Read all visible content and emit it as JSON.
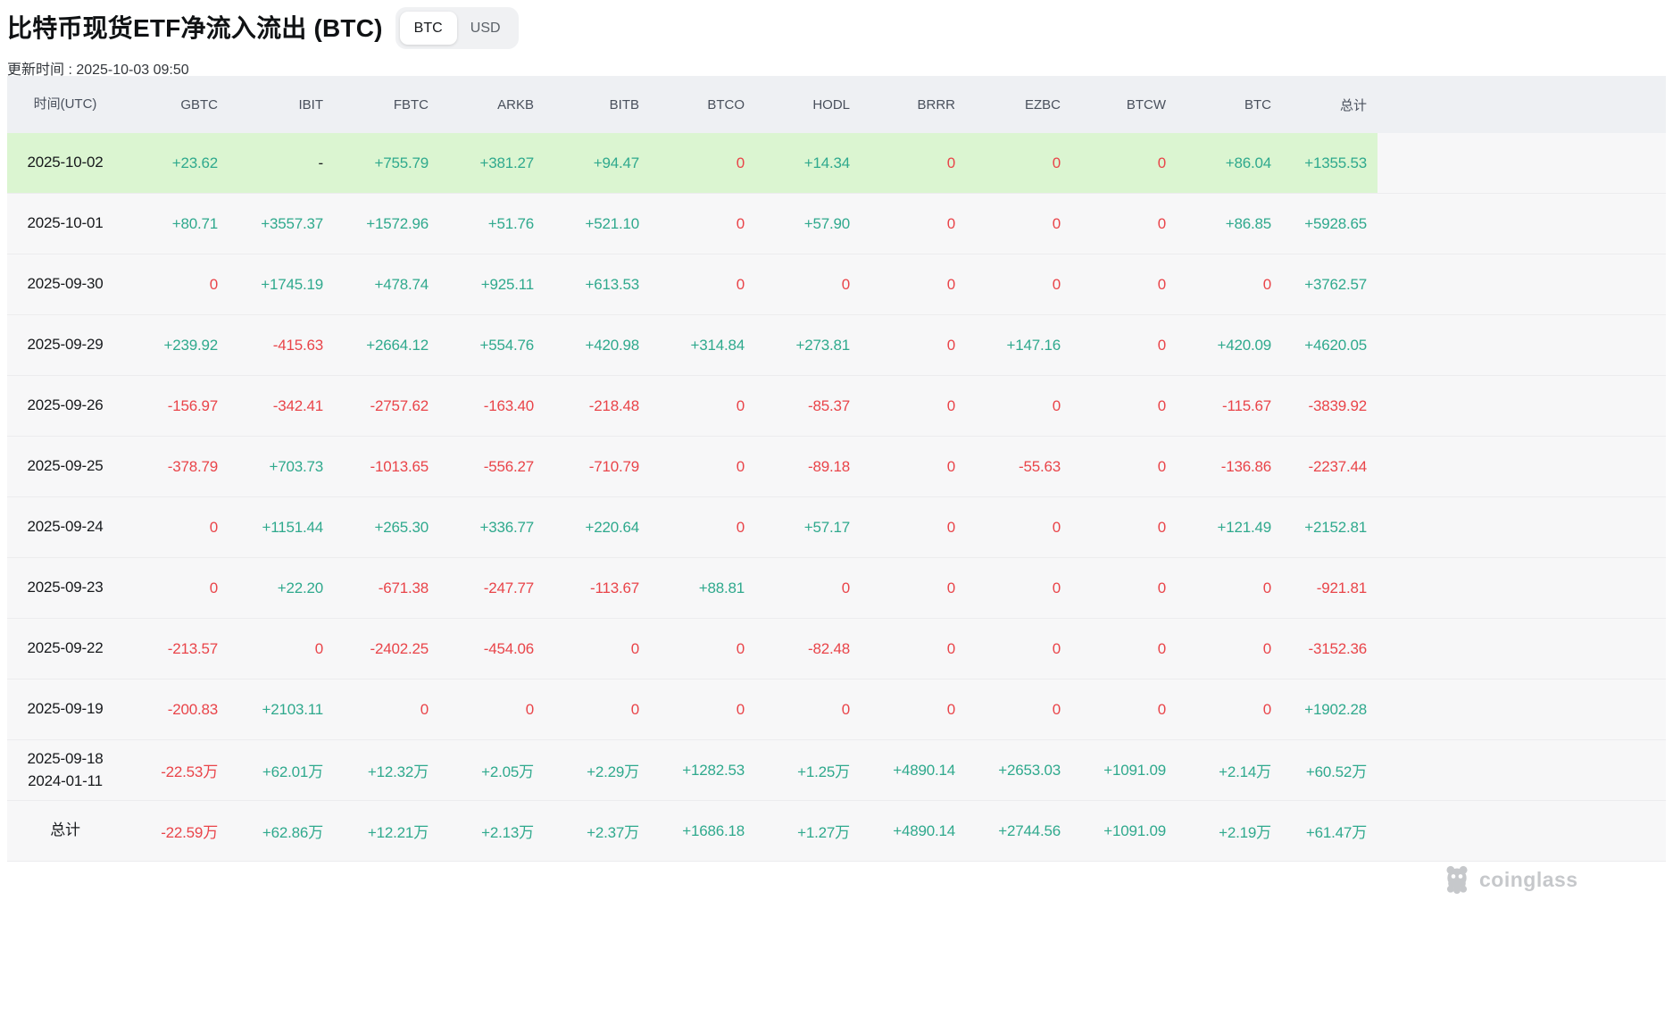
{
  "page": {
    "title": "比特币现货ETF净流入流出 (BTC)",
    "update_time": "更新时间 : 2025-10-03 09:50"
  },
  "toggle": {
    "options": [
      {
        "label": "BTC",
        "selected": true
      },
      {
        "label": "USD",
        "selected": false
      }
    ]
  },
  "watermark": {
    "brand": "coinglass",
    "icon": "coinglass-mascot-icon"
  },
  "colors": {
    "positive": "#2fa98d",
    "negative": "#e94449",
    "highlight_row_bg": "#dbf5d1",
    "header_bg": "#eef0f3",
    "row_bg": "#f7f7f8"
  },
  "table": {
    "columns": [
      "时间(UTC)",
      "GBTC",
      "IBIT",
      "FBTC",
      "ARKB",
      "BITB",
      "BTCO",
      "HODL",
      "BRRR",
      "EZBC",
      "BTCW",
      "BTC",
      "总计"
    ],
    "rows": [
      {
        "date": "2025-10-02",
        "highlight": true,
        "values": [
          "+23.62",
          "-",
          "+755.79",
          "+381.27",
          "+94.47",
          "0",
          "+14.34",
          "0",
          "0",
          "0",
          "+86.04",
          "+1355.53"
        ]
      },
      {
        "date": "2025-10-01",
        "highlight": false,
        "values": [
          "+80.71",
          "+3557.37",
          "+1572.96",
          "+51.76",
          "+521.10",
          "0",
          "+57.90",
          "0",
          "0",
          "0",
          "+86.85",
          "+5928.65"
        ]
      },
      {
        "date": "2025-09-30",
        "highlight": false,
        "values": [
          "0",
          "+1745.19",
          "+478.74",
          "+925.11",
          "+613.53",
          "0",
          "0",
          "0",
          "0",
          "0",
          "0",
          "+3762.57"
        ]
      },
      {
        "date": "2025-09-29",
        "highlight": false,
        "values": [
          "+239.92",
          "-415.63",
          "+2664.12",
          "+554.76",
          "+420.98",
          "+314.84",
          "+273.81",
          "0",
          "+147.16",
          "0",
          "+420.09",
          "+4620.05"
        ]
      },
      {
        "date": "2025-09-26",
        "highlight": false,
        "values": [
          "-156.97",
          "-342.41",
          "-2757.62",
          "-163.40",
          "-218.48",
          "0",
          "-85.37",
          "0",
          "0",
          "0",
          "-115.67",
          "-3839.92"
        ]
      },
      {
        "date": "2025-09-25",
        "highlight": false,
        "values": [
          "-378.79",
          "+703.73",
          "-1013.65",
          "-556.27",
          "-710.79",
          "0",
          "-89.18",
          "0",
          "-55.63",
          "0",
          "-136.86",
          "-2237.44"
        ]
      },
      {
        "date": "2025-09-24",
        "highlight": false,
        "values": [
          "0",
          "+1151.44",
          "+265.30",
          "+336.77",
          "+220.64",
          "0",
          "+57.17",
          "0",
          "0",
          "0",
          "+121.49",
          "+2152.81"
        ]
      },
      {
        "date": "2025-09-23",
        "highlight": false,
        "values": [
          "0",
          "+22.20",
          "-671.38",
          "-247.77",
          "-113.67",
          "+88.81",
          "0",
          "0",
          "0",
          "0",
          "0",
          "-921.81"
        ]
      },
      {
        "date": "2025-09-22",
        "highlight": false,
        "values": [
          "-213.57",
          "0",
          "-2402.25",
          "-454.06",
          "0",
          "0",
          "-82.48",
          "0",
          "0",
          "0",
          "0",
          "-3152.36"
        ]
      },
      {
        "date": "2025-09-19",
        "highlight": false,
        "values": [
          "-200.83",
          "+2103.11",
          "0",
          "0",
          "0",
          "0",
          "0",
          "0",
          "0",
          "0",
          "0",
          "+1902.28"
        ]
      },
      {
        "date": [
          "2025-09-18",
          "2024-01-11"
        ],
        "highlight": false,
        "values": [
          "-22.53万",
          "+62.01万",
          "+12.32万",
          "+2.05万",
          "+2.29万",
          "+1282.53",
          "+1.25万",
          "+4890.14",
          "+2653.03",
          "+1091.09",
          "+2.14万",
          "+60.52万"
        ]
      },
      {
        "date": "总计",
        "highlight": false,
        "is_total": true,
        "values": [
          "-22.59万",
          "+62.86万",
          "+12.21万",
          "+2.13万",
          "+2.37万",
          "+1686.18",
          "+1.27万",
          "+4890.14",
          "+2744.56",
          "+1091.09",
          "+2.19万",
          "+61.47万"
        ]
      }
    ]
  }
}
